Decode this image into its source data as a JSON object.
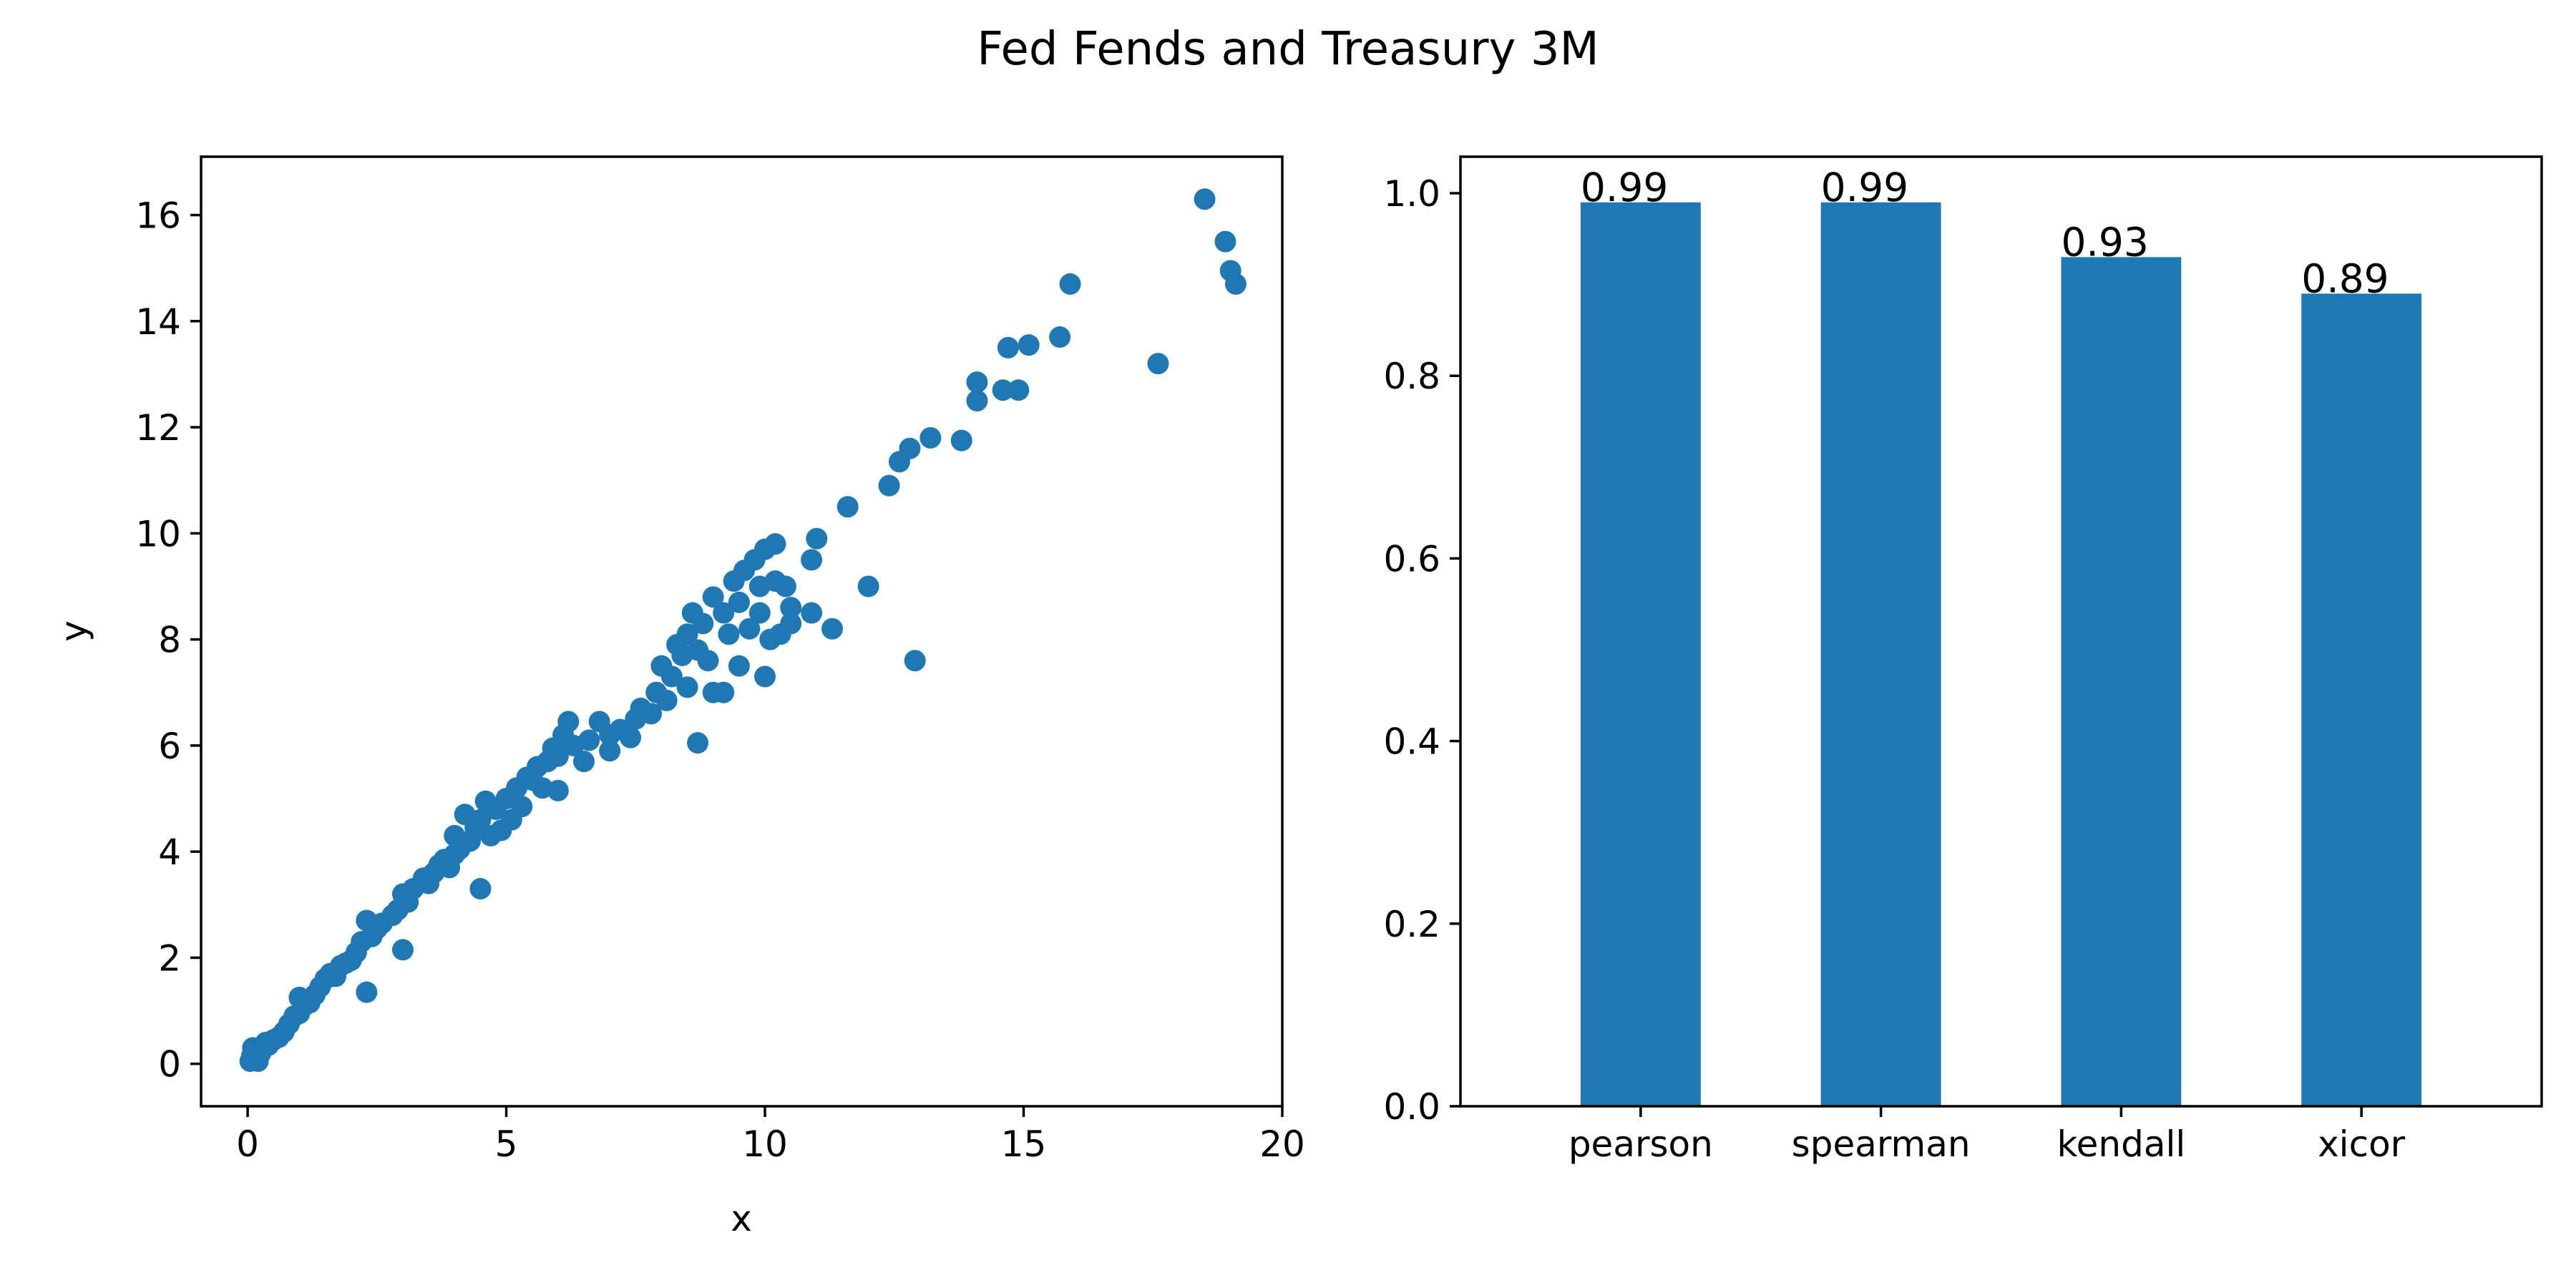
{
  "title": "Fed Fends and Treasury 3M",
  "chart_data": [
    {
      "type": "scatter",
      "title": "",
      "xlabel": "x",
      "ylabel": "y",
      "xlim": [
        -0.9,
        20.0
      ],
      "ylim": [
        -0.8,
        17.1
      ],
      "xticks": [
        0,
        5,
        10,
        15,
        20
      ],
      "yticks": [
        0,
        2,
        4,
        6,
        8,
        10,
        12,
        14,
        16
      ],
      "xtick_labels": [
        "0",
        "5",
        "10",
        "15",
        "20"
      ],
      "ytick_labels": [
        "0",
        "2",
        "4",
        "6",
        "8",
        "10",
        "12",
        "14",
        "16"
      ],
      "color": "#1f77b4",
      "grid": false,
      "points": [
        [
          0.05,
          0.05
        ],
        [
          0.08,
          0.15
        ],
        [
          0.1,
          0.3
        ],
        [
          0.12,
          0.1
        ],
        [
          0.15,
          0.25
        ],
        [
          0.2,
          0.05
        ],
        [
          0.25,
          0.2
        ],
        [
          0.3,
          0.3
        ],
        [
          0.35,
          0.4
        ],
        [
          0.4,
          0.35
        ],
        [
          0.5,
          0.45
        ],
        [
          0.6,
          0.5
        ],
        [
          0.7,
          0.6
        ],
        [
          0.8,
          0.75
        ],
        [
          0.9,
          0.9
        ],
        [
          1.0,
          0.95
        ],
        [
          1.0,
          1.25
        ],
        [
          1.1,
          1.1
        ],
        [
          1.2,
          1.15
        ],
        [
          1.3,
          1.3
        ],
        [
          1.4,
          1.45
        ],
        [
          1.5,
          1.6
        ],
        [
          1.6,
          1.7
        ],
        [
          1.7,
          1.65
        ],
        [
          1.8,
          1.85
        ],
        [
          1.9,
          1.9
        ],
        [
          2.0,
          1.95
        ],
        [
          2.1,
          2.1
        ],
        [
          2.2,
          2.3
        ],
        [
          2.3,
          1.35
        ],
        [
          2.3,
          2.7
        ],
        [
          2.4,
          2.4
        ],
        [
          2.5,
          2.55
        ],
        [
          2.6,
          2.65
        ],
        [
          2.8,
          2.8
        ],
        [
          2.9,
          2.9
        ],
        [
          3.0,
          3.2
        ],
        [
          3.0,
          2.15
        ],
        [
          3.1,
          3.05
        ],
        [
          3.2,
          3.3
        ],
        [
          3.4,
          3.5
        ],
        [
          3.5,
          3.4
        ],
        [
          3.6,
          3.6
        ],
        [
          3.7,
          3.75
        ],
        [
          3.8,
          3.85
        ],
        [
          3.9,
          3.7
        ],
        [
          4.0,
          4.3
        ],
        [
          4.0,
          3.95
        ],
        [
          4.1,
          4.05
        ],
        [
          4.2,
          4.7
        ],
        [
          4.3,
          4.2
        ],
        [
          4.4,
          4.45
        ],
        [
          4.5,
          3.3
        ],
        [
          4.5,
          4.6
        ],
        [
          4.6,
          4.95
        ],
        [
          4.7,
          4.3
        ],
        [
          4.8,
          4.8
        ],
        [
          4.9,
          4.4
        ],
        [
          5.0,
          5.0
        ],
        [
          5.1,
          4.6
        ],
        [
          5.2,
          5.2
        ],
        [
          5.3,
          4.85
        ],
        [
          5.4,
          5.4
        ],
        [
          5.5,
          5.35
        ],
        [
          5.6,
          5.6
        ],
        [
          5.7,
          5.2
        ],
        [
          5.8,
          5.7
        ],
        [
          5.9,
          5.95
        ],
        [
          6.0,
          5.8
        ],
        [
          6.0,
          5.15
        ],
        [
          6.1,
          6.2
        ],
        [
          6.2,
          6.45
        ],
        [
          6.3,
          6.0
        ],
        [
          6.5,
          5.7
        ],
        [
          6.6,
          6.1
        ],
        [
          6.8,
          6.45
        ],
        [
          7.0,
          5.9
        ],
        [
          7.0,
          6.2
        ],
        [
          7.2,
          6.3
        ],
        [
          7.4,
          6.15
        ],
        [
          7.5,
          6.5
        ],
        [
          7.6,
          6.7
        ],
        [
          7.8,
          6.6
        ],
        [
          7.9,
          7.0
        ],
        [
          8.0,
          7.5
        ],
        [
          8.1,
          6.85
        ],
        [
          8.2,
          7.3
        ],
        [
          8.3,
          7.9
        ],
        [
          8.4,
          7.7
        ],
        [
          8.5,
          8.1
        ],
        [
          8.5,
          7.1
        ],
        [
          8.6,
          8.5
        ],
        [
          8.7,
          6.05
        ],
        [
          8.7,
          7.8
        ],
        [
          8.8,
          8.3
        ],
        [
          8.9,
          7.6
        ],
        [
          9.0,
          8.8
        ],
        [
          9.0,
          7.0
        ],
        [
          9.2,
          8.5
        ],
        [
          9.2,
          7.0
        ],
        [
          9.3,
          8.1
        ],
        [
          9.4,
          9.1
        ],
        [
          9.5,
          8.7
        ],
        [
          9.5,
          7.5
        ],
        [
          9.6,
          9.3
        ],
        [
          9.7,
          8.2
        ],
        [
          9.8,
          9.5
        ],
        [
          9.9,
          9.0
        ],
        [
          9.9,
          8.5
        ],
        [
          10.0,
          9.7
        ],
        [
          10.0,
          7.3
        ],
        [
          10.1,
          8.0
        ],
        [
          10.2,
          9.8
        ],
        [
          10.2,
          9.1
        ],
        [
          10.3,
          8.1
        ],
        [
          10.4,
          9.0
        ],
        [
          10.5,
          8.6
        ],
        [
          10.5,
          8.3
        ],
        [
          10.9,
          9.5
        ],
        [
          10.9,
          8.5
        ],
        [
          11.0,
          9.9
        ],
        [
          11.3,
          8.2
        ],
        [
          11.6,
          10.5
        ],
        [
          12.0,
          9.0
        ],
        [
          12.4,
          10.9
        ],
        [
          12.6,
          11.35
        ],
        [
          12.8,
          11.6
        ],
        [
          12.9,
          7.6
        ],
        [
          13.2,
          11.8
        ],
        [
          13.8,
          11.75
        ],
        [
          14.1,
          12.85
        ],
        [
          14.1,
          12.5
        ],
        [
          14.6,
          12.7
        ],
        [
          14.7,
          13.5
        ],
        [
          14.9,
          12.7
        ],
        [
          15.1,
          13.55
        ],
        [
          15.7,
          13.7
        ],
        [
          15.9,
          14.7
        ],
        [
          17.6,
          13.2
        ],
        [
          18.5,
          16.3
        ],
        [
          18.9,
          15.5
        ],
        [
          19.0,
          14.95
        ],
        [
          19.1,
          14.7
        ]
      ]
    },
    {
      "type": "bar",
      "title": "",
      "xlabel": "",
      "ylabel": "",
      "categories": [
        "pearson",
        "spearman",
        "kendall",
        "xicor"
      ],
      "values": [
        0.99,
        0.99,
        0.93,
        0.89
      ],
      "data_labels": [
        "0.99",
        "0.99",
        "0.93",
        "0.89"
      ],
      "ylim": [
        0.0,
        1.04
      ],
      "yticks": [
        0.0,
        0.2,
        0.4,
        0.6,
        0.8,
        1.0
      ],
      "ytick_labels": [
        "0.0",
        "0.2",
        "0.4",
        "0.6",
        "0.8",
        "1.0"
      ],
      "color": "#1f77b4",
      "grid": false
    }
  ]
}
